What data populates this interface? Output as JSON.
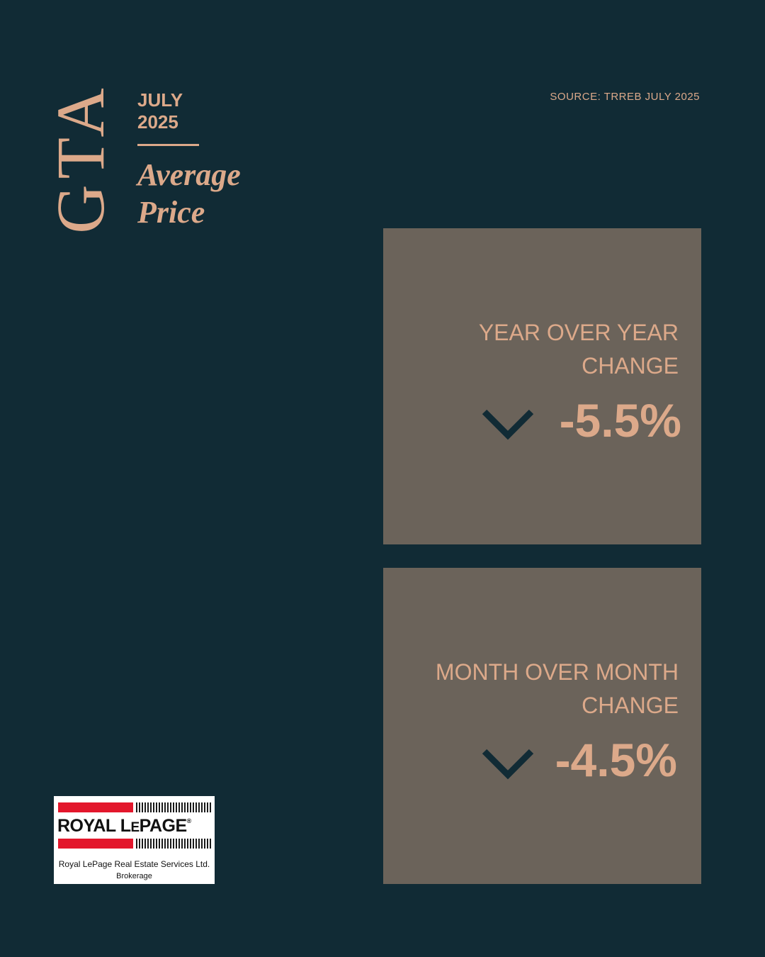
{
  "header": {
    "region": "GTA",
    "month": "JULY",
    "year": "2025",
    "title_line1": "Average",
    "title_line2": "Price",
    "source": "SOURCE:  TRREB JULY 2025"
  },
  "cards": [
    {
      "label_line1": "YEAR OVER YEAR",
      "label_line2": "CHANGE",
      "value": "-5.5%",
      "icon": "chevron-down-icon"
    },
    {
      "label_line1": "MONTH OVER MONTH",
      "label_line2": "CHANGE",
      "value": "-4.5%",
      "icon": "chevron-down-icon"
    }
  ],
  "logo": {
    "brand_part1": "ROYAL L",
    "brand_part2": "E",
    "brand_part3": "PAGE",
    "registered": "®",
    "company": "Royal LePage Real Estate Services Ltd.",
    "type": "Brokerage"
  },
  "colors": {
    "background": "#112b35",
    "accent": "#dca98a",
    "card": "#6b635a",
    "logo_red": "#e3172c"
  }
}
